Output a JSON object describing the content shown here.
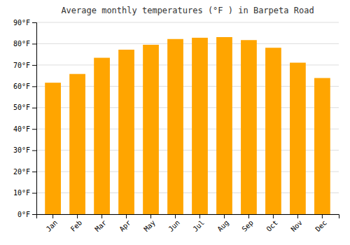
{
  "chart_data": {
    "type": "bar",
    "title": "Average monthly temperatures (°F ) in Barpeta Road",
    "categories": [
      "Jan",
      "Feb",
      "Mar",
      "Apr",
      "May",
      "Jun",
      "Jul",
      "Aug",
      "Sep",
      "Oct",
      "Nov",
      "Dec"
    ],
    "values": [
      61.7,
      65.8,
      73.4,
      77.2,
      79.5,
      82.2,
      82.8,
      83.1,
      81.7,
      78.1,
      71.1,
      63.9
    ],
    "color": "#FFA500",
    "ylim": [
      0,
      90
    ],
    "yticks": [
      {
        "value": 0,
        "label": "0°F"
      },
      {
        "value": 10,
        "label": "10°F"
      },
      {
        "value": 20,
        "label": "20°F"
      },
      {
        "value": 30,
        "label": "30°F"
      },
      {
        "value": 40,
        "label": "40°F"
      },
      {
        "value": 50,
        "label": "50°F"
      },
      {
        "value": 60,
        "label": "60°F"
      },
      {
        "value": 70,
        "label": "70°F"
      },
      {
        "value": 80,
        "label": "80°F"
      },
      {
        "value": 90,
        "label": "90°F"
      }
    ],
    "grid": true
  }
}
